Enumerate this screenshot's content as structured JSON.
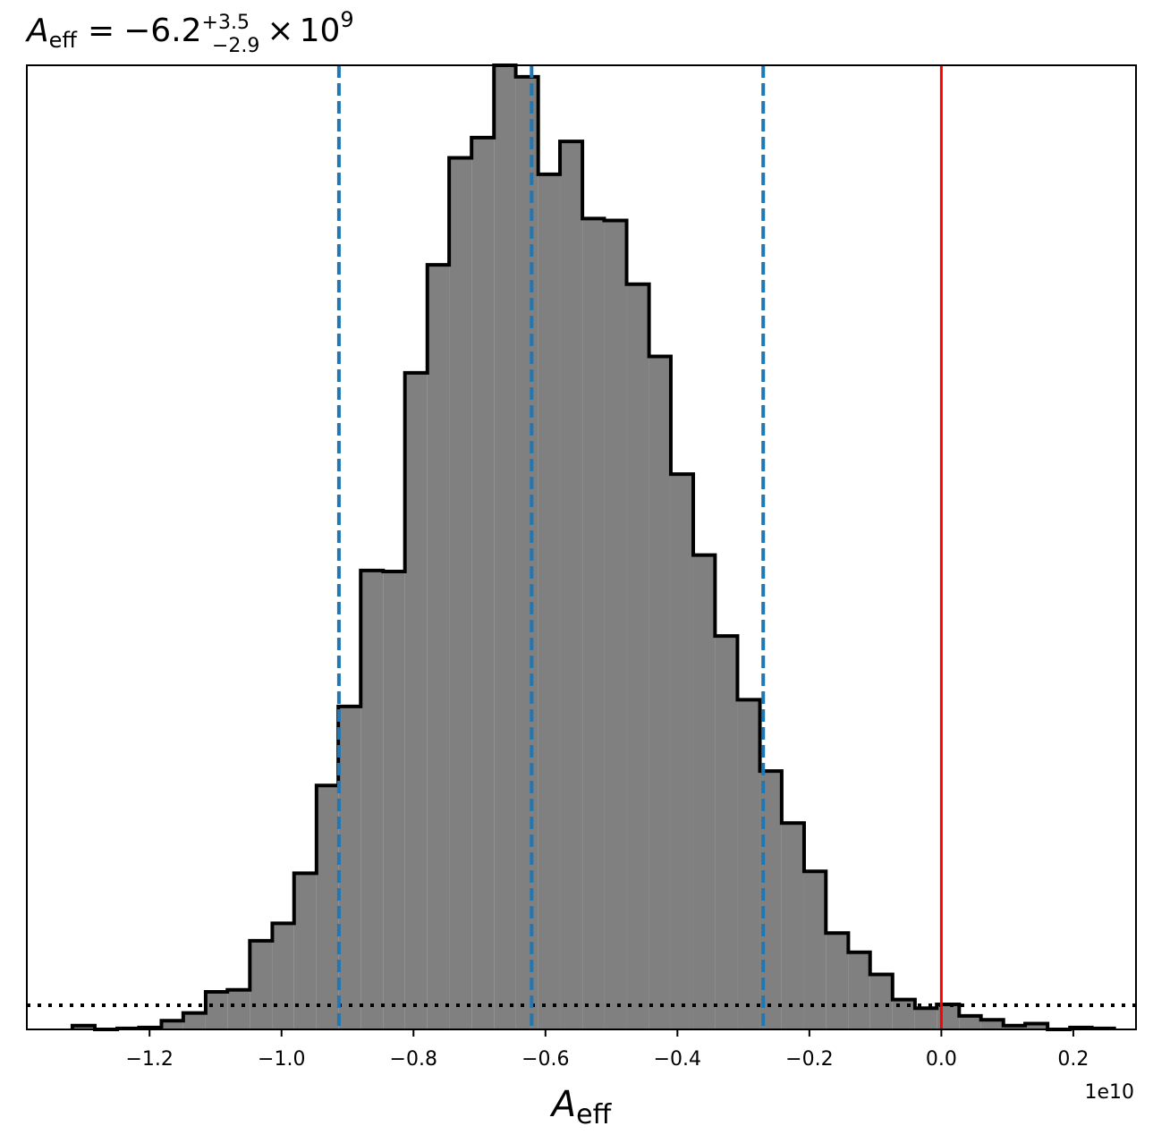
{
  "chart_data": {
    "type": "bar",
    "title": {
      "symbol": "A",
      "symbol_subscript": "eff",
      "equals": "=",
      "value": "−6.2",
      "err_plus": "+3.5",
      "err_minus": "−2.9",
      "times": "×",
      "base": "10",
      "exponent": "9"
    },
    "xlabel": {
      "symbol": "A",
      "subscript": "eff"
    },
    "x_offset_label": "1e10",
    "xlim": [
      -1.386,
      0.295
    ],
    "ylim": [
      0,
      1.0
    ],
    "xticks": [
      -1.2,
      -1.0,
      -0.8,
      -0.6,
      -0.4,
      -0.2,
      0.0,
      0.2
    ],
    "xtick_labels": [
      "−1.2",
      "−1.0",
      "−0.8",
      "−0.6",
      "−0.4",
      "−0.2",
      "0.0",
      "0.2"
    ],
    "bin_edges": [
      -1.317,
      -1.283,
      -1.249,
      -1.216,
      -1.182,
      -1.149,
      -1.115,
      -1.082,
      -1.048,
      -1.014,
      -0.981,
      -0.947,
      -0.914,
      -0.88,
      -0.846,
      -0.813,
      -0.779,
      -0.746,
      -0.712,
      -0.678,
      -0.645,
      -0.611,
      -0.578,
      -0.544,
      -0.511,
      -0.477,
      -0.443,
      -0.41,
      -0.376,
      -0.343,
      -0.309,
      -0.275,
      -0.242,
      -0.208,
      -0.175,
      -0.141,
      -0.108,
      -0.074,
      -0.04,
      -0.007,
      0.027,
      0.06,
      0.094,
      0.127,
      0.161,
      0.195,
      0.228,
      0.262
    ],
    "histogram_values": [
      0.004,
      0.0,
      0.001,
      0.002,
      0.009,
      0.017,
      0.039,
      0.041,
      0.092,
      0.11,
      0.162,
      0.253,
      0.335,
      0.476,
      0.475,
      0.681,
      0.793,
      0.904,
      0.925,
      1.0,
      0.988,
      0.887,
      0.921,
      0.841,
      0.839,
      0.773,
      0.698,
      0.576,
      0.492,
      0.408,
      0.342,
      0.268,
      0.214,
      0.164,
      0.1,
      0.08,
      0.057,
      0.031,
      0.022,
      0.026,
      0.014,
      0.01,
      0.004,
      0.006,
      0.0,
      0.002,
      0.001
    ],
    "prior_level": 0.025,
    "quantile_lines": [
      -0.913,
      -0.621,
      -0.27
    ],
    "reference_line": 0.0,
    "colors": {
      "histogram_fill": "#808080",
      "histogram_edge": "#000000",
      "quantile_lines": "#1f77b4",
      "reference_line": "#ff0000",
      "prior_line": "#000000"
    }
  }
}
